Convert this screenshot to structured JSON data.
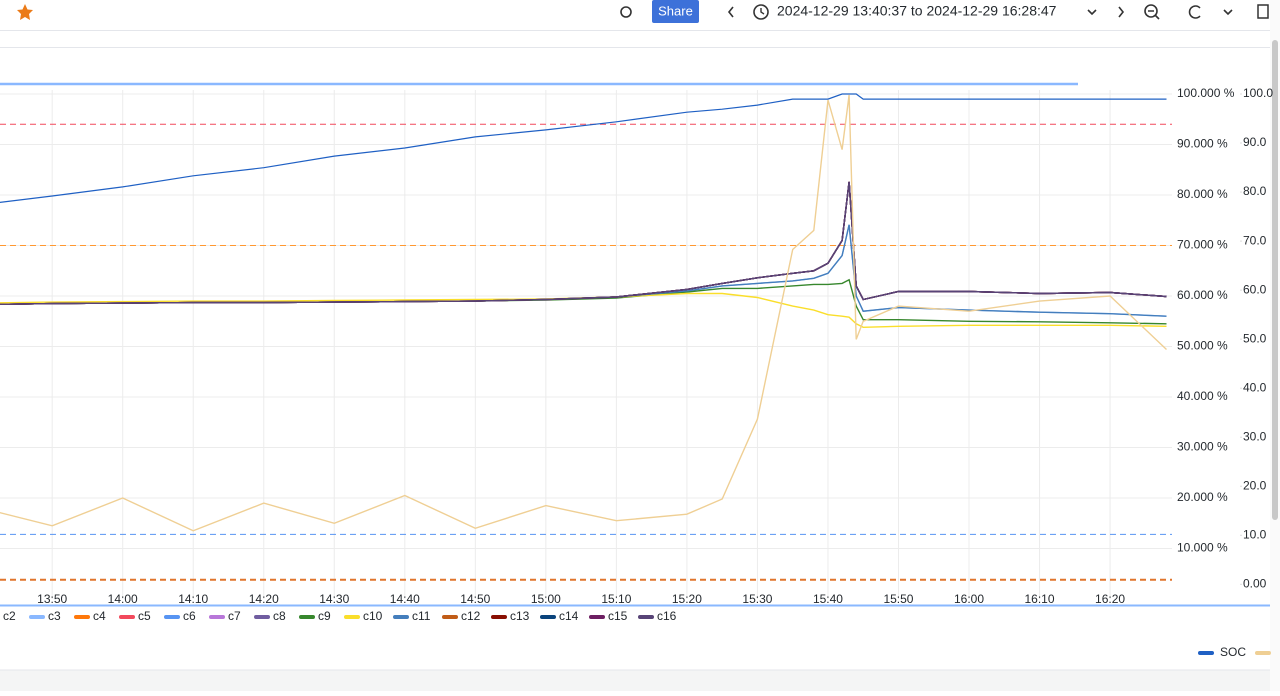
{
  "toolbar": {
    "share": "Share",
    "time_range": "2024-12-29 13:40:37 to 2024-12-29 16:28:47"
  },
  "chart_data": {
    "type": "line",
    "x": [
      "13:40",
      "13:50",
      "14:00",
      "14:10",
      "14:20",
      "14:30",
      "14:40",
      "14:50",
      "15:00",
      "15:10",
      "15:20",
      "15:25",
      "15:30",
      "15:35",
      "15:38",
      "15:40",
      "15:42",
      "15:43",
      "15:44",
      "15:45",
      "15:50",
      "16:00",
      "16:10",
      "16:20",
      "16:28"
    ],
    "xlim": [
      "13:40:37",
      "16:28:47"
    ],
    "xticks": [
      "13:50",
      "14:00",
      "14:10",
      "14:20",
      "14:30",
      "14:40",
      "14:50",
      "15:00",
      "15:10",
      "15:20",
      "15:30",
      "15:40",
      "15:50",
      "16:00",
      "16:10",
      "16:20"
    ],
    "ylim": [
      0,
      100
    ],
    "yticks": [
      {
        "value": 100,
        "label": "100.000 %"
      },
      {
        "value": 90,
        "label": "90.000 %"
      },
      {
        "value": 80,
        "label": "80.000 %"
      },
      {
        "value": 70,
        "label": "70.000 %"
      },
      {
        "value": 60,
        "label": "60.000 %"
      },
      {
        "value": 50,
        "label": "50.000 %"
      },
      {
        "value": 40,
        "label": "40.000 %"
      },
      {
        "value": 30,
        "label": "30.000 %"
      },
      {
        "value": 20,
        "label": "20.000 %"
      },
      {
        "value": 10,
        "label": "10.000 %"
      }
    ],
    "y2lim": [
      -3,
      100
    ],
    "y2ticks": [
      {
        "value": 100,
        "label": "100.0"
      },
      {
        "value": 90,
        "label": "90.0"
      },
      {
        "value": 80,
        "label": "80.0"
      },
      {
        "value": 70,
        "label": "70.0"
      },
      {
        "value": 60,
        "label": "60.0"
      },
      {
        "value": 50,
        "label": "50.0"
      },
      {
        "value": 40,
        "label": "40.0"
      },
      {
        "value": 30,
        "label": "30.0"
      },
      {
        "value": 20,
        "label": "20.0"
      },
      {
        "value": 10,
        "label": "10.0"
      },
      {
        "value": 0,
        "label": "0.00"
      }
    ],
    "grid": true,
    "thresholds": [
      {
        "value": 94,
        "color": "#F2495C"
      },
      {
        "value": 70,
        "color": "#FF9830"
      },
      {
        "value": 12.8,
        "color": "#5794F2"
      },
      {
        "value": 3.8,
        "color": "#E0752D"
      }
    ],
    "series": [
      {
        "name": "c2",
        "color": "#73BF69",
        "values": [
          58.3,
          58.5,
          58.6,
          58.7,
          58.7,
          58.8,
          58.9,
          59.0,
          59.3,
          59.8,
          61.3,
          62.5,
          63.6,
          64.5,
          65.0,
          66.5,
          71.0,
          82.6,
          62.0,
          59.3,
          60.9,
          60.9,
          60.5,
          60.7,
          59.9
        ]
      },
      {
        "name": "c3",
        "color": "#8AB8FF",
        "values": [
          58.3,
          58.5,
          58.6,
          58.7,
          58.7,
          58.8,
          58.9,
          59.0,
          59.3,
          59.8,
          61.0,
          62.0,
          62.5,
          63.0,
          63.5,
          64.5,
          68.0,
          74.1,
          60.0,
          57.0,
          57.7,
          57.2,
          56.8,
          56.5,
          56.0
        ]
      },
      {
        "name": "c4",
        "color": "#FF780A",
        "values": [
          58.3,
          58.5,
          58.6,
          58.7,
          58.7,
          58.8,
          58.9,
          59.0,
          59.3,
          59.8,
          61.3,
          62.5,
          63.6,
          64.5,
          65.0,
          66.5,
          71.0,
          82.6,
          62.0,
          59.3,
          60.9,
          60.9,
          60.5,
          60.7,
          59.9
        ]
      },
      {
        "name": "c5",
        "color": "#F2495C",
        "values": [
          58.3,
          58.5,
          58.6,
          58.7,
          58.7,
          58.8,
          58.9,
          59.0,
          59.3,
          59.8,
          61.3,
          62.5,
          63.6,
          64.5,
          65.0,
          66.5,
          71.0,
          82.6,
          62.0,
          59.3,
          60.9,
          60.9,
          60.5,
          60.7,
          59.9
        ]
      },
      {
        "name": "c6",
        "color": "#5794F2",
        "values": [
          58.3,
          58.5,
          58.6,
          58.7,
          58.7,
          58.8,
          58.9,
          59.0,
          59.3,
          59.8,
          61.3,
          62.5,
          63.6,
          64.5,
          65.0,
          66.5,
          71.0,
          82.6,
          62.0,
          59.3,
          60.9,
          60.9,
          60.5,
          60.7,
          59.9
        ]
      },
      {
        "name": "c7",
        "color": "#B877D9",
        "values": [
          58.3,
          58.5,
          58.6,
          58.7,
          58.7,
          58.8,
          58.9,
          59.0,
          59.3,
          59.8,
          61.3,
          62.5,
          63.6,
          64.5,
          65.0,
          66.5,
          71.0,
          82.6,
          62.0,
          59.3,
          60.9,
          60.9,
          60.5,
          60.7,
          59.9
        ]
      },
      {
        "name": "c8",
        "color": "#705DA0",
        "values": [
          58.3,
          58.5,
          58.6,
          58.7,
          58.7,
          58.8,
          58.9,
          59.0,
          59.3,
          59.8,
          61.3,
          62.5,
          63.6,
          64.5,
          65.0,
          66.5,
          71.0,
          82.6,
          62.0,
          59.3,
          60.9,
          60.9,
          60.5,
          60.7,
          59.9
        ]
      },
      {
        "name": "c9",
        "color": "#37872D",
        "values": [
          58.3,
          58.5,
          58.6,
          58.7,
          58.7,
          58.8,
          58.9,
          59.0,
          59.2,
          59.6,
          60.8,
          61.5,
          61.5,
          62.0,
          62.3,
          62.3,
          62.5,
          63.2,
          58.0,
          55.3,
          55.3,
          55.0,
          54.9,
          54.7,
          54.5
        ]
      },
      {
        "name": "c10",
        "color": "#FADE2A",
        "values": [
          58.6,
          58.8,
          58.9,
          59.0,
          59.0,
          59.1,
          59.2,
          59.3,
          59.4,
          59.8,
          60.5,
          60.5,
          59.7,
          58.0,
          57.2,
          56.3,
          56.0,
          55.8,
          54.5,
          53.8,
          54.0,
          54.2,
          54.2,
          54.2,
          54.0
        ]
      },
      {
        "name": "c11",
        "color": "#447EBC",
        "values": [
          58.3,
          58.5,
          58.6,
          58.7,
          58.7,
          58.8,
          58.9,
          59.0,
          59.3,
          59.8,
          61.0,
          62.0,
          62.5,
          63.0,
          63.5,
          64.5,
          68.0,
          74.1,
          60.0,
          57.0,
          57.7,
          57.2,
          56.8,
          56.5,
          56.0
        ]
      },
      {
        "name": "c12",
        "color": "#C15C17",
        "values": [
          58.3,
          58.5,
          58.6,
          58.7,
          58.7,
          58.8,
          58.9,
          59.0,
          59.3,
          59.8,
          61.3,
          62.5,
          63.6,
          64.5,
          65.0,
          66.5,
          71.0,
          82.6,
          62.0,
          59.3,
          60.9,
          60.9,
          60.5,
          60.7,
          59.9
        ]
      },
      {
        "name": "c13",
        "color": "#890F02",
        "values": [
          58.3,
          58.5,
          58.6,
          58.7,
          58.7,
          58.8,
          58.9,
          59.0,
          59.3,
          59.8,
          61.3,
          62.5,
          63.6,
          64.5,
          65.0,
          66.5,
          71.0,
          82.6,
          62.0,
          59.3,
          60.9,
          60.9,
          60.5,
          60.7,
          59.9
        ]
      },
      {
        "name": "c14",
        "color": "#0A437C",
        "values": [
          58.3,
          58.5,
          58.6,
          58.7,
          58.7,
          58.8,
          58.9,
          59.0,
          59.3,
          59.8,
          61.3,
          62.5,
          63.6,
          64.5,
          65.0,
          66.5,
          71.0,
          82.6,
          62.0,
          59.3,
          60.9,
          60.9,
          60.5,
          60.7,
          59.9
        ]
      },
      {
        "name": "c15",
        "color": "#6D1F62",
        "values": [
          58.3,
          58.5,
          58.6,
          58.7,
          58.7,
          58.8,
          58.9,
          59.0,
          59.3,
          59.8,
          61.3,
          62.5,
          63.6,
          64.5,
          65.0,
          66.5,
          71.0,
          82.6,
          62.0,
          59.3,
          60.9,
          60.9,
          60.5,
          60.7,
          59.9
        ]
      },
      {
        "name": "c16",
        "color": "#584477",
        "values": [
          58.3,
          58.5,
          58.6,
          58.7,
          58.7,
          58.8,
          58.9,
          59.0,
          59.3,
          59.8,
          61.3,
          62.5,
          63.6,
          64.5,
          65.0,
          66.5,
          71.0,
          82.6,
          62.0,
          59.3,
          60.9,
          60.9,
          60.5,
          60.7,
          59.9
        ]
      },
      {
        "name": "SOC",
        "color": "#1F60C4",
        "legend_row": 2,
        "values": [
          78.1,
          79.8,
          81.6,
          83.8,
          85.4,
          87.7,
          89.3,
          91.5,
          92.9,
          94.5,
          96.4,
          97.0,
          97.8,
          99.0,
          99.0,
          99.0,
          100,
          100,
          100,
          99.0,
          99.0,
          99.0,
          99.0,
          99.0,
          99.0
        ]
      },
      {
        "color": "#EFCF94",
        "legend_row": 2,
        "values": [
          18.0,
          14.5,
          20.0,
          13.5,
          19.0,
          15.0,
          20.5,
          14.0,
          18.5,
          15.5,
          16.8,
          19.8,
          35.6,
          69.2,
          73.0,
          98.8,
          89.0,
          99.8,
          51.4,
          55.0,
          58.0,
          57.0,
          59.0,
          60.0,
          49.4
        ]
      }
    ]
  }
}
